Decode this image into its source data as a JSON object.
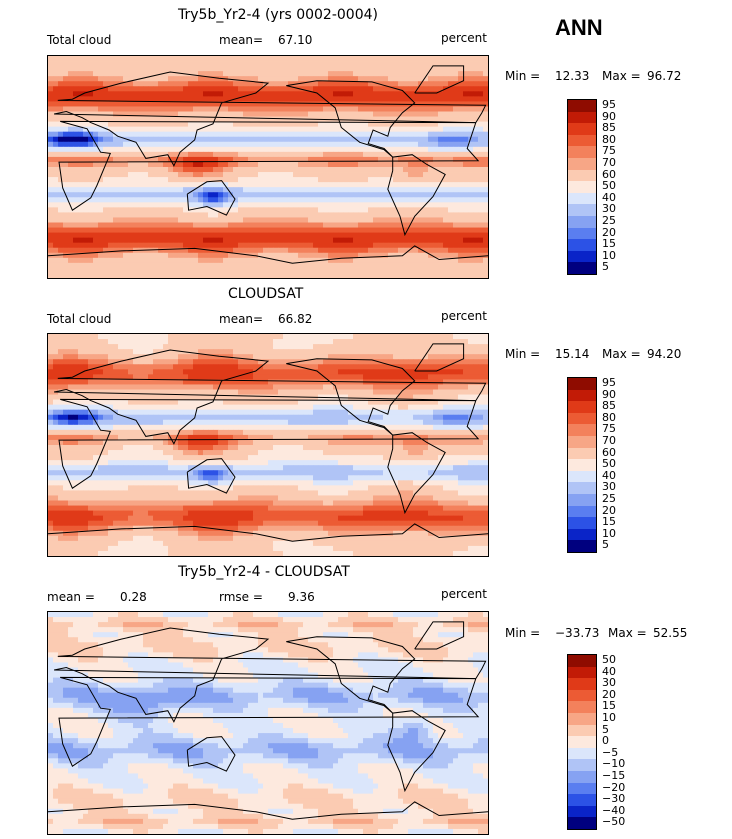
{
  "season": "ANN",
  "colors": {
    "abs": [
      "#00007f",
      "#0a24c8",
      "#2c52e6",
      "#5a7ef0",
      "#86a2f2",
      "#b0c4f6",
      "#dbe6fb",
      "#fde9de",
      "#fbcbb2",
      "#f7a686",
      "#f3815c",
      "#ec5b34",
      "#e03a18",
      "#c21b06",
      "#8f0c00"
    ],
    "diff": [
      "#00007f",
      "#0a24c8",
      "#2c52e6",
      "#5a7ef0",
      "#86a2f2",
      "#b0c4f6",
      "#dbe6fb",
      "#fde9de",
      "#fbcbb2",
      "#f7a686",
      "#f3815c",
      "#ec5b34",
      "#e03a18",
      "#c21b06",
      "#8f0c00"
    ]
  },
  "panels": [
    {
      "title": "Try5b_Yr2-4 (yrs 0002-0004)",
      "left_label": "Total cloud",
      "mean_label": "mean=",
      "mean_value": "67.10",
      "units": "percent",
      "min_label": "Min =",
      "min_value": "12.33",
      "max_label": "Max =",
      "max_value": "96.72"
    },
    {
      "title": "CLOUDSAT",
      "left_label": "Total cloud",
      "mean_label": "mean=",
      "mean_value": "66.82",
      "units": "percent",
      "min_label": "Min =",
      "min_value": "15.14",
      "max_label": "Max =",
      "max_value": "94.20"
    },
    {
      "title": "Try5b_Yr2-4 - CLOUDSAT",
      "left_label": "mean =",
      "mean_label": "rmse =",
      "mean_value": "9.36",
      "left_value": "0.28",
      "units": "percent",
      "min_label": "Min =",
      "min_value": "−33.73",
      "max_label": "Max =",
      "max_value": "52.55"
    }
  ],
  "chart_data": [
    {
      "type": "heatmap",
      "title": "Try5b_Yr2-4 (yrs 0002-0004)",
      "variable": "Total cloud",
      "units": "percent",
      "mean": 67.1,
      "min": 12.33,
      "max": 96.72,
      "colorbar_levels": [
        95,
        90,
        85,
        80,
        75,
        70,
        60,
        50,
        40,
        30,
        25,
        20,
        15,
        10,
        5
      ]
    },
    {
      "type": "heatmap",
      "title": "CLOUDSAT",
      "variable": "Total cloud",
      "units": "percent",
      "mean": 66.82,
      "min": 15.14,
      "max": 94.2,
      "colorbar_levels": [
        95,
        90,
        85,
        80,
        75,
        70,
        60,
        50,
        40,
        30,
        25,
        20,
        15,
        10,
        5
      ]
    },
    {
      "type": "heatmap",
      "title": "Try5b_Yr2-4 - CLOUDSAT",
      "units": "percent",
      "mean": 0.28,
      "rmse": 9.36,
      "min": -33.73,
      "max": 52.55,
      "colorbar_levels": [
        "50",
        "40",
        "30",
        "20",
        "15",
        "10",
        "5",
        "0",
        "−5",
        "−10",
        "−15",
        "−20",
        "−30",
        "−40",
        "−50"
      ]
    }
  ]
}
